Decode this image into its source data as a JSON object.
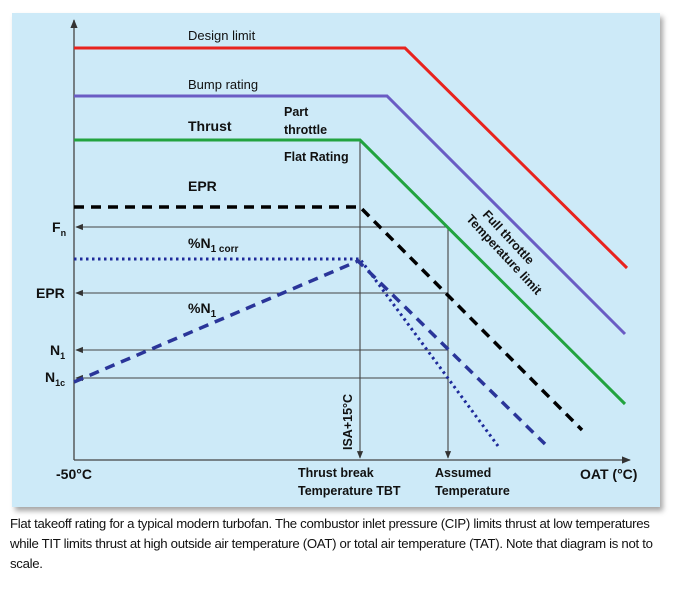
{
  "diagram": {
    "curves": {
      "design_limit": {
        "label": "Design limit",
        "color": "#e8231e"
      },
      "bump_rating": {
        "label": "Bump rating",
        "color": "#6a5cc4"
      },
      "thrust": {
        "label": "Thrust",
        "color": "#22a33f"
      },
      "epr": {
        "label": "EPR",
        "color": "#000000"
      },
      "n1_corr": {
        "label_main": "%N",
        "label_sub": "1 corr",
        "color": "#1e2a9a"
      },
      "n1": {
        "label_main": "%N",
        "label_sub": "1",
        "color": "#2a3599"
      }
    },
    "annotations": {
      "part": "Part",
      "throttle": "throttle",
      "flat_rating": "Flat Rating",
      "full_throttle": "Full throttle",
      "temp_limit": "Temperature limit",
      "isa": "ISA+15°C"
    },
    "y_markers": {
      "fn": {
        "main": "F",
        "sub": "n"
      },
      "epr": {
        "main": "EPR"
      },
      "n1": {
        "main": "N",
        "sub": "1"
      },
      "n1c": {
        "main": "N",
        "sub": "1c"
      }
    },
    "x_labels": {
      "min": "-50°C",
      "tbt_line1": "Thrust break",
      "tbt_line2": "Temperature TBT",
      "assumed_line1": "Assumed",
      "assumed_line2": "Temperature",
      "axis": "OAT (°C)"
    }
  },
  "caption": "Flat takeoff rating for a typical modern turbofan. The combustor inlet pressure (CIP) limits thrust at low temperatures while TIT limits thrust at high outside air temperature (OAT) or total air temperature (TAT). Note that diagram is not to scale."
}
